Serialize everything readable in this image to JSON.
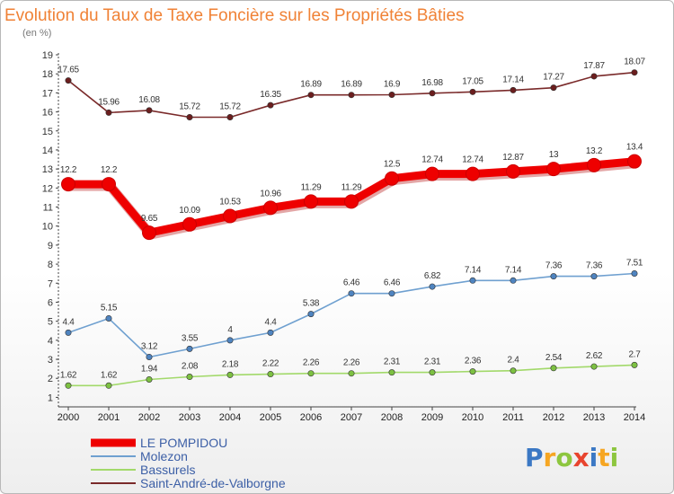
{
  "header": {
    "title": "Evolution du Taux de Taxe Foncière sur les Propriétés Bâties",
    "subtitle": "(en %)"
  },
  "logo": {
    "letters": [
      "P",
      "r",
      "o",
      "x",
      "i",
      "t",
      "i"
    ],
    "colors": [
      "#3b78c4",
      "#f6a623",
      "#8dc63f",
      "#e8442e",
      "#3b78c4",
      "#f6a623",
      "#8dc63f"
    ]
  },
  "chart_data": {
    "type": "line",
    "title": "Evolution du Taux de Taxe Foncière sur les Propriétés Bâties",
    "subtitle": "(en %)",
    "x": [
      "2000",
      "2001",
      "2002",
      "2003",
      "2004",
      "2005",
      "2006",
      "2007",
      "2008",
      "2009",
      "2010",
      "2011",
      "2012",
      "2013",
      "2014"
    ],
    "yticks": [
      1,
      2,
      3,
      4,
      5,
      6,
      7,
      8,
      9,
      10,
      11,
      12,
      13,
      14,
      15,
      16,
      17,
      18,
      19
    ],
    "ylim": [
      0.5,
      19
    ],
    "grid": false,
    "legend": "bottom-left",
    "series": [
      {
        "name": "LE POMPIDOU",
        "color": "#ee0000",
        "emphasis": true,
        "values": [
          12.2,
          12.2,
          9.65,
          10.09,
          10.53,
          10.96,
          11.29,
          11.29,
          12.5,
          12.74,
          12.74,
          12.87,
          13,
          13.2,
          13.4
        ],
        "labels": [
          "12.2",
          "12.2",
          "9.65",
          "10.09",
          "10.53",
          "10.96",
          "11.29",
          "11.29",
          "12.5",
          "12.74",
          "12.74",
          "12.87",
          "13",
          "13.2",
          "13.4"
        ]
      },
      {
        "name": "Molezon",
        "color": "#6fa0d0",
        "marker": "#4f84c0",
        "values": [
          4.4,
          5.15,
          3.12,
          3.55,
          4,
          4.4,
          5.38,
          6.46,
          6.46,
          6.82,
          7.14,
          7.14,
          7.36,
          7.36,
          7.51
        ],
        "labels": [
          "4.4",
          "5.15",
          "3.12",
          "3.55",
          "4",
          "4.4",
          "5.38",
          "6.46",
          "6.46",
          "6.82",
          "7.14",
          "7.14",
          "7.36",
          "7.36",
          "7.51"
        ]
      },
      {
        "name": "Bassurels",
        "color": "#a2d96a",
        "marker": "#7dc142",
        "values": [
          1.62,
          1.62,
          1.94,
          2.08,
          2.18,
          2.22,
          2.26,
          2.26,
          2.31,
          2.31,
          2.36,
          2.4,
          2.54,
          2.62,
          2.7
        ],
        "labels": [
          "1.62",
          "1.62",
          "1.94",
          "2.08",
          "2.18",
          "2.22",
          "2.26",
          "2.26",
          "2.31",
          "2.31",
          "2.36",
          "2.4",
          "2.54",
          "2.62",
          "2.7"
        ]
      },
      {
        "name": "Saint-André-de-Valborgne",
        "color": "#7a2a2a",
        "marker": "#6b1e1e",
        "values": [
          17.65,
          15.96,
          16.08,
          15.72,
          15.72,
          16.35,
          16.89,
          16.89,
          16.9,
          16.98,
          17.05,
          17.14,
          17.27,
          17.87,
          18.07
        ],
        "labels": [
          "17.65",
          "15.96",
          "16.08",
          "15.72",
          "15.72",
          "16.35",
          "16.89",
          "16.89",
          "16.9",
          "16.98",
          "17.05",
          "17.14",
          "17.27",
          "17.87",
          "18.07"
        ]
      }
    ]
  }
}
